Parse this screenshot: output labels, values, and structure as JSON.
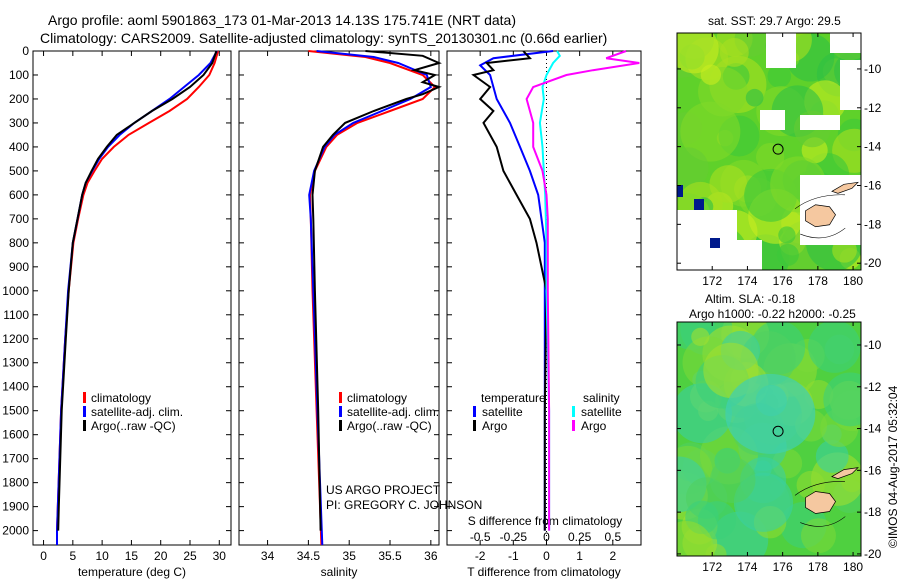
{
  "header": {
    "line1": "Argo profile: aoml 5901863_173 01-Mar-2013 14.13S 175.741E (NRT data)",
    "line2": "Climatology: CARS2009. Satellite-adjusted climatology: synTS_20130301.nc (0.66d earlier)"
  },
  "credit": "©IMOS 04-Aug-2017 05:32:04",
  "project": {
    "line1": "US ARGO PROJECT",
    "line2": "PI: GREGORY C. JOHNSON"
  },
  "colors": {
    "climatology": "#ff0000",
    "satellite": "#0000ff",
    "argo": "#000000",
    "sat_s": "#00ffff",
    "argo_s": "#ff00ff"
  },
  "chart_data": [
    {
      "type": "line",
      "name": "temperature",
      "xlabel": "temperature (deg C)",
      "ylabel": "pressure",
      "xlim": [
        -1.8,
        32
      ],
      "ylim": [
        0,
        2060
      ],
      "xticks": [
        "0",
        "5",
        "10",
        "15",
        "20",
        "25",
        "30"
      ],
      "yticks": [
        "0",
        "100",
        "200",
        "300",
        "400",
        "500",
        "600",
        "700",
        "800",
        "900",
        "1000",
        "1100",
        "1200",
        "1300",
        "1400",
        "1500",
        "1600",
        "1700",
        "1800",
        "1900",
        "2000"
      ],
      "legend": [
        "climatology",
        "satellite-adj. clim.",
        "Argo(..raw -QC)"
      ],
      "series": [
        {
          "name": "climatology",
          "p": [
            0,
            50,
            100,
            150,
            200,
            250,
            300,
            350,
            400,
            450,
            500,
            550,
            600,
            700,
            800,
            1000,
            1200,
            1500,
            2000,
            2060
          ],
          "v": [
            29.8,
            29.2,
            28.3,
            26.5,
            24.5,
            21.5,
            18.0,
            14.5,
            12,
            10,
            8.7,
            7.5,
            6.8,
            5.9,
            5.1,
            4.3,
            3.7,
            3.0,
            2.3,
            2.3
          ]
        },
        {
          "name": "satellite",
          "p": [
            0,
            50,
            100,
            150,
            200,
            250,
            300,
            350,
            400,
            450,
            500,
            550,
            600,
            700,
            800,
            1000,
            1200,
            1500,
            2000,
            2060
          ],
          "v": [
            29.6,
            28.5,
            26.5,
            24,
            21.5,
            18.5,
            15.5,
            13,
            11,
            9.5,
            8.3,
            7.2,
            6.6,
            5.8,
            5.0,
            4.2,
            3.7,
            3.0,
            2.3,
            2.3
          ]
        },
        {
          "name": "Argo",
          "p": [
            0,
            50,
            100,
            150,
            200,
            250,
            300,
            350,
            400,
            450,
            500,
            550,
            600,
            700,
            800,
            1000,
            1200,
            1500,
            1900,
            2000
          ],
          "v": [
            29.5,
            28.8,
            27.3,
            25,
            22,
            18.5,
            15.5,
            12.5,
            10.8,
            9.3,
            8.2,
            7.2,
            6.6,
            5.8,
            5.0,
            4.3,
            3.8,
            3.1,
            2.6,
            2.5
          ]
        }
      ]
    },
    {
      "type": "line",
      "name": "salinity",
      "xlabel": "salinity",
      "xlim": [
        33.65,
        36.1
      ],
      "ylim": [
        0,
        2060
      ],
      "xticks": [
        "34",
        "34.5",
        "35",
        "35.5",
        "36"
      ],
      "legend": [
        "climatology",
        "satellite-adj. clim.",
        "Argo(..raw -QC)"
      ],
      "series": [
        {
          "name": "climatology",
          "p": [
            0,
            25,
            50,
            100,
            150,
            200,
            250,
            300,
            350,
            400,
            500,
            600,
            700,
            1000,
            1500,
            2060
          ],
          "v": [
            34.5,
            35.2,
            35.5,
            35.9,
            36.05,
            35.9,
            35.5,
            35.1,
            34.85,
            34.72,
            34.58,
            34.52,
            34.53,
            34.55,
            34.6,
            34.66
          ]
        },
        {
          "name": "satellite",
          "p": [
            0,
            25,
            50,
            100,
            150,
            200,
            250,
            300,
            350,
            400,
            500,
            600,
            700,
            1000,
            1500,
            2060
          ],
          "v": [
            34.6,
            35.3,
            35.6,
            35.95,
            36.0,
            35.75,
            35.4,
            35.05,
            34.82,
            34.7,
            34.57,
            34.51,
            34.53,
            34.56,
            34.61,
            34.67
          ]
        },
        {
          "name": "Argo",
          "p": [
            0,
            20,
            50,
            80,
            100,
            130,
            150,
            180,
            200,
            250,
            300,
            350,
            400,
            500,
            600,
            700,
            1000,
            1500,
            2000
          ],
          "v": [
            35.2,
            35.9,
            36.1,
            35.8,
            36.05,
            35.9,
            36.1,
            35.9,
            35.7,
            35.3,
            34.95,
            34.8,
            34.68,
            34.58,
            34.55,
            34.56,
            34.58,
            34.62,
            34.65
          ]
        }
      ]
    },
    {
      "type": "line",
      "name": "difference",
      "xlabel": "T difference from climatology",
      "x2label": "S difference from climatology",
      "xlim": [
        -3,
        2.85
      ],
      "ylim": [
        0,
        2060
      ],
      "xticks": [
        "-2",
        "-1",
        "0",
        "1",
        "2"
      ],
      "x2ticks": [
        "-0.5",
        "-0.25",
        "0",
        "0.25",
        "0.5"
      ],
      "legend": {
        "temperature": "temperature",
        "salinity": "salinity",
        "satellite": "satellite",
        "argo": "Argo"
      },
      "series": [
        {
          "name": "T satellite",
          "p": [
            0,
            30,
            60,
            100,
            150,
            200,
            300,
            400,
            500,
            600,
            700,
            800,
            1000,
            1500,
            2000
          ],
          "v": [
            0.2,
            -1.6,
            -2.0,
            -1.7,
            -1.6,
            -1.5,
            -1.1,
            -0.8,
            -0.5,
            -0.25,
            -0.15,
            -0.05,
            -0.05,
            -0.05,
            -0.05
          ]
        },
        {
          "name": "T Argo",
          "p": [
            0,
            30,
            50,
            80,
            100,
            150,
            200,
            250,
            300,
            400,
            500,
            550,
            600,
            700,
            800,
            900,
            1000,
            1500,
            2000
          ],
          "v": [
            -0.7,
            -0.5,
            -1.8,
            -1.6,
            -2.2,
            -1.7,
            -2.0,
            -1.6,
            -1.9,
            -1.5,
            -1.3,
            -1.1,
            -0.9,
            -0.5,
            -0.3,
            -0.15,
            0,
            -0.05,
            -0.05
          ]
        },
        {
          "name": "S satellite",
          "p": [
            0,
            20,
            50,
            100,
            150,
            200,
            300,
            400,
            500,
            600,
            800,
            1000,
            1500,
            2000
          ],
          "v": [
            0.08,
            0.1,
            0.05,
            0.0,
            -0.03,
            -0.02,
            -0.05,
            -0.03,
            -0.02,
            -0.01,
            0.0,
            0.0,
            0.02,
            0.02
          ]
        },
        {
          "name": "S Argo",
          "p": [
            0,
            30,
            50,
            80,
            100,
            150,
            200,
            300,
            400,
            500,
            600,
            700,
            1000,
            1500,
            2000
          ],
          "v": [
            0.6,
            0.45,
            0.7,
            0.35,
            0.15,
            -0.1,
            -0.15,
            -0.1,
            -0.1,
            -0.03,
            0.0,
            0.01,
            0.01,
            0.02,
            0.02
          ]
        }
      ]
    }
  ],
  "maps": [
    {
      "title": "sat. SST: 29.7 Argo: 29.5",
      "xticks": [
        "172",
        "174",
        "176",
        "178",
        "180"
      ],
      "yticks": [
        "-10",
        "-12",
        "-14",
        "-16",
        "-18",
        "-20"
      ]
    },
    {
      "title1": "Altim. SLA: -0.18",
      "title2": "Argo h1000: -0.22 h2000: -0.25",
      "xticks": [
        "172",
        "174",
        "176",
        "178",
        "180"
      ],
      "yticks": [
        "-10",
        "-12",
        "-14",
        "-16",
        "-18",
        "-20"
      ]
    }
  ]
}
